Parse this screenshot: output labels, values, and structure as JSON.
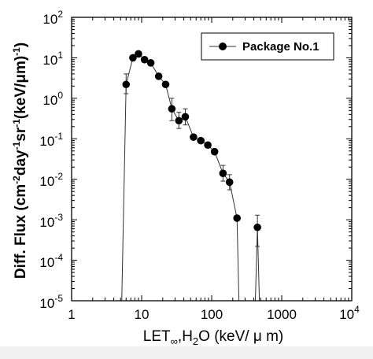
{
  "chart_data": {
    "type": "line",
    "xscale": "log",
    "yscale": "log",
    "xlim": [
      1,
      10000
    ],
    "ylim": [
      1e-05,
      100
    ],
    "x_tick_labels": [
      {
        "base": "1",
        "exp": ""
      },
      {
        "base": "10",
        "exp": ""
      },
      {
        "base": "100",
        "exp": ""
      },
      {
        "base": "1000",
        "exp": ""
      },
      {
        "base": "10",
        "exp": "4"
      }
    ],
    "y_tick_labels": [
      {
        "base": "10",
        "exp": "2"
      },
      {
        "base": "10",
        "exp": "1"
      },
      {
        "base": "10",
        "exp": "0"
      },
      {
        "base": "10",
        "exp": "-1"
      },
      {
        "base": "10",
        "exp": "-2"
      },
      {
        "base": "10",
        "exp": "-3"
      },
      {
        "base": "10",
        "exp": "-4"
      },
      {
        "base": "10",
        "exp": "-5"
      }
    ],
    "xlabel": {
      "main": "LET",
      "sub": "∞",
      "sep": ",H",
      "sub2": "2",
      "rest": "O (keV/ μ m)"
    },
    "ylabel": {
      "p1": "Diff. Flux (cm",
      "e1": "-2",
      "p2": "day",
      "e2": "-1",
      "p3": "sr",
      "e3": "-1",
      "p4": "(keV/μm)",
      "e4": "-1",
      "p5": ")"
    },
    "legend_position": "top-right",
    "grid": false,
    "series": [
      {
        "name": "Package No.1",
        "points": [
          {
            "x": 6.0,
            "y": 2.2,
            "err": [
              1.3,
              4.0
            ]
          },
          {
            "x": 7.5,
            "y": 10.0
          },
          {
            "x": 9.0,
            "y": 12.5
          },
          {
            "x": 11.0,
            "y": 9.0
          },
          {
            "x": 13.5,
            "y": 7.5
          },
          {
            "x": 17.5,
            "y": 3.5
          },
          {
            "x": 22.0,
            "y": 2.2
          },
          {
            "x": 27.0,
            "y": 0.55,
            "err": [
              0.28,
              1.0
            ]
          },
          {
            "x": 34.0,
            "y": 0.28,
            "err": [
              0.18,
              0.45
            ]
          },
          {
            "x": 42.0,
            "y": 0.35,
            "err": [
              0.22,
              0.55
            ]
          },
          {
            "x": 55.0,
            "y": 0.11
          },
          {
            "x": 70.0,
            "y": 0.09
          },
          {
            "x": 88.0,
            "y": 0.07
          },
          {
            "x": 110.0,
            "y": 0.048
          },
          {
            "x": 145.0,
            "y": 0.014,
            "err": [
              0.009,
              0.022
            ]
          },
          {
            "x": 180.0,
            "y": 0.0085,
            "err": [
              0.0055,
              0.013
            ]
          },
          {
            "x": 230.0,
            "y": 0.0011
          },
          {
            "x": 450.0,
            "y": 0.00065,
            "err": [
              0.00022,
              0.0013
            ]
          }
        ]
      }
    ],
    "line_colors": {
      "axis": "#000000",
      "line": "#333333",
      "marker": "#000000"
    }
  }
}
